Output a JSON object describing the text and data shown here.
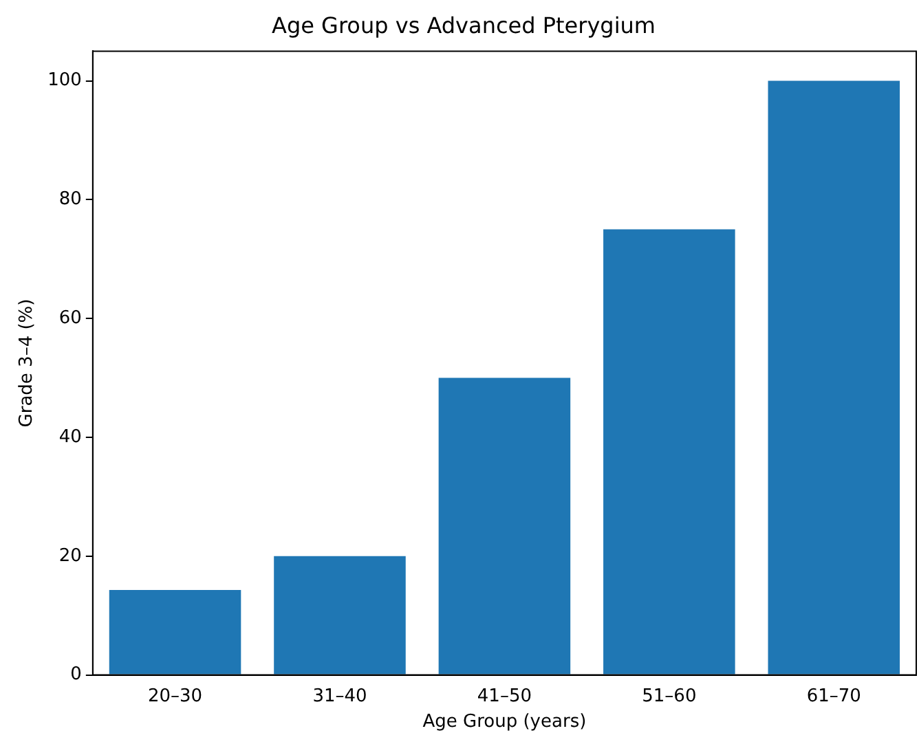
{
  "chart_data": {
    "type": "bar",
    "title": "Age Group vs Advanced Pterygium",
    "xlabel": "Age Group (years)",
    "ylabel": "Grade 3–4 (%)",
    "categories": [
      "20–30",
      "31–40",
      "41–50",
      "51–60",
      "61–70"
    ],
    "values": [
      14.3,
      20,
      50,
      75,
      100
    ],
    "color": "#1f77b4",
    "ylim": [
      0,
      105
    ],
    "yticks": [
      0,
      20,
      40,
      60,
      80,
      100
    ],
    "grid": false,
    "legend": false
  }
}
